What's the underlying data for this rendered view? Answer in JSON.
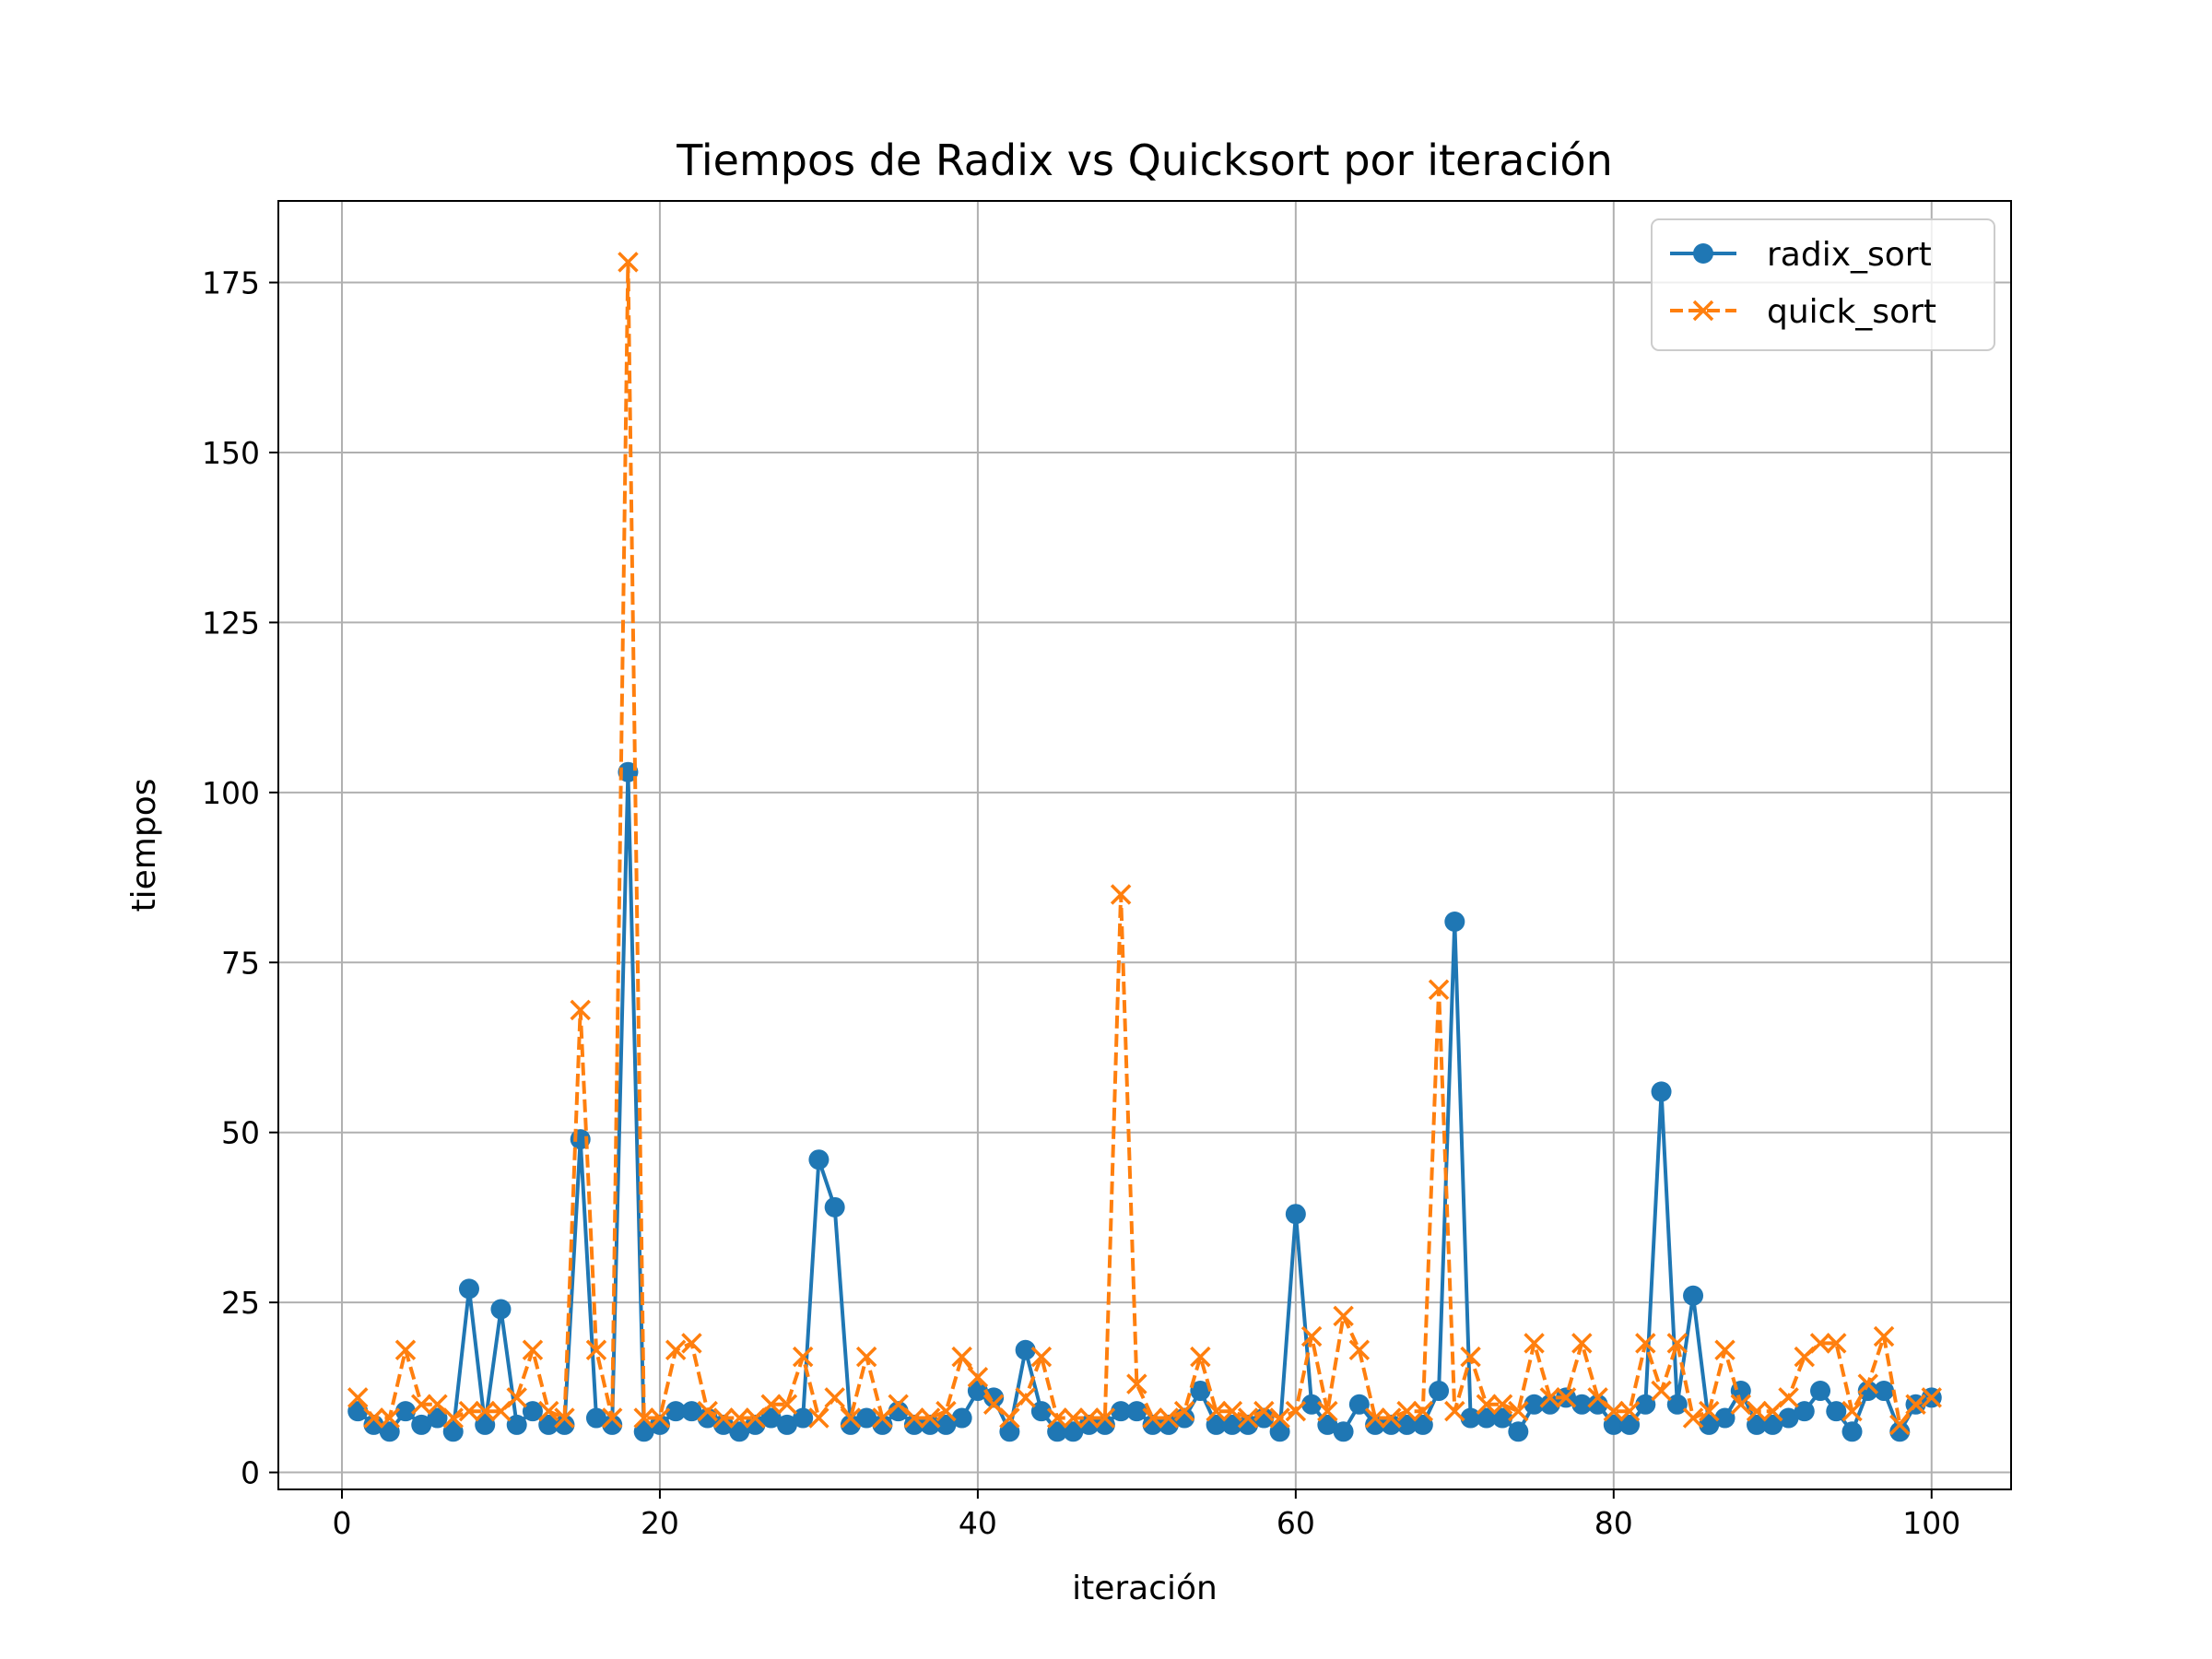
{
  "chart_data": {
    "type": "line",
    "title": "Tiempos de Radix vs Quicksort por iteración",
    "xlabel": "iteración",
    "ylabel": "tiempos",
    "xlim": [
      -4,
      105
    ],
    "ylim": [
      -2.5,
      187
    ],
    "xticks": [
      0,
      20,
      40,
      60,
      80,
      100
    ],
    "yticks": [
      0,
      25,
      50,
      75,
      100,
      125,
      150,
      175
    ],
    "grid": true,
    "legend_position": "top-right",
    "x": [
      1,
      2,
      3,
      4,
      5,
      6,
      7,
      8,
      9,
      10,
      11,
      12,
      13,
      14,
      15,
      16,
      17,
      18,
      19,
      20,
      21,
      22,
      23,
      24,
      25,
      26,
      27,
      28,
      29,
      30,
      31,
      32,
      33,
      34,
      35,
      36,
      37,
      38,
      39,
      40,
      41,
      42,
      43,
      44,
      45,
      46,
      47,
      48,
      49,
      50,
      51,
      52,
      53,
      54,
      55,
      56,
      57,
      58,
      59,
      60,
      61,
      62,
      63,
      64,
      65,
      66,
      67,
      68,
      69,
      70,
      71,
      72,
      73,
      74,
      75,
      76,
      77,
      78,
      79,
      80,
      81,
      82,
      83,
      84,
      85,
      86,
      87,
      88,
      89,
      90,
      91,
      92,
      93,
      94,
      95,
      96,
      97,
      98,
      99,
      100
    ],
    "series": [
      {
        "name": "radix_sort",
        "color": "#1f77b4",
        "line_style": "solid",
        "marker": "circle",
        "values": [
          9,
          7,
          6,
          9,
          7,
          8,
          6,
          27,
          7,
          24,
          7,
          9,
          7,
          7,
          49,
          8,
          7,
          103,
          6,
          7,
          9,
          9,
          8,
          7,
          6,
          7,
          8,
          7,
          8,
          46,
          39,
          7,
          8,
          7,
          9,
          7,
          7,
          7,
          8,
          12,
          11,
          6,
          18,
          9,
          6,
          6,
          7,
          7,
          9,
          9,
          7,
          7,
          8,
          12,
          7,
          7,
          7,
          8,
          6,
          38,
          10,
          7,
          6,
          10,
          7,
          7,
          7,
          7,
          12,
          81,
          8,
          8,
          8,
          6,
          10,
          10,
          11,
          10,
          10,
          7,
          7,
          10,
          56,
          10,
          26,
          7,
          8,
          12,
          7,
          7,
          8,
          9,
          12,
          9,
          6,
          12,
          12,
          6,
          10,
          11
        ]
      },
      {
        "name": "quick_sort",
        "color": "#ff7f0e",
        "line_style": "dashed",
        "marker": "x",
        "values": [
          11,
          8,
          8,
          18,
          10,
          10,
          8,
          9,
          9,
          9,
          11,
          18,
          9,
          8,
          68,
          18,
          8,
          178,
          8,
          8,
          18,
          19,
          9,
          8,
          8,
          8,
          10,
          10,
          17,
          8,
          11,
          8,
          17,
          8,
          10,
          8,
          8,
          9,
          17,
          14,
          10,
          8,
          11,
          17,
          8,
          8,
          8,
          8,
          85,
          13,
          8,
          8,
          9,
          17,
          9,
          9,
          8,
          9,
          8,
          9,
          20,
          9,
          23,
          18,
          8,
          8,
          9,
          9,
          71,
          9,
          17,
          10,
          10,
          9,
          19,
          11,
          11,
          19,
          11,
          9,
          9,
          19,
          12,
          19,
          8,
          9,
          18,
          10,
          9,
          9,
          11,
          17,
          19,
          19,
          9,
          13,
          20,
          7,
          10,
          11
        ]
      }
    ]
  }
}
